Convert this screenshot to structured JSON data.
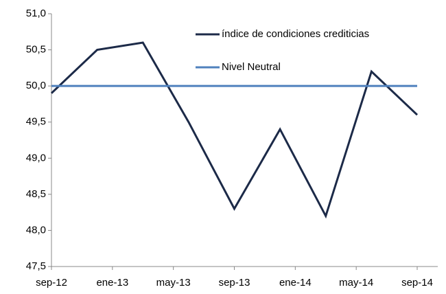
{
  "chart_data": {
    "type": "line",
    "x": [
      0,
      3,
      6,
      9,
      12,
      15,
      18,
      21,
      24
    ],
    "xlim": [
      0,
      24
    ],
    "xticks": [
      {
        "value": 0,
        "label": "sep-12"
      },
      {
        "value": 4,
        "label": "ene-13"
      },
      {
        "value": 8,
        "label": "may-13"
      },
      {
        "value": 12,
        "label": "sep-13"
      },
      {
        "value": 16,
        "label": "ene-14"
      },
      {
        "value": 20,
        "label": "may-14"
      },
      {
        "value": 24,
        "label": "sep-14"
      }
    ],
    "ylim": [
      47.5,
      51
    ],
    "yticks": [
      {
        "value": 47.5,
        "label": "47,5"
      },
      {
        "value": 48,
        "label": "48,0"
      },
      {
        "value": 48.5,
        "label": "48,5"
      },
      {
        "value": 49,
        "label": "49,0"
      },
      {
        "value": 49.5,
        "label": "49,5"
      },
      {
        "value": 50,
        "label": "50,0"
      },
      {
        "value": 50.5,
        "label": "50,5"
      },
      {
        "value": 51,
        "label": "51,0"
      }
    ],
    "series": [
      {
        "name": "índice de condiciones crediticias",
        "color": "#1c2a48",
        "values": [
          49.9,
          50.5,
          50.6,
          49.5,
          48.3,
          49.4,
          48.2,
          50.2,
          49.6
        ]
      },
      {
        "name": "Nivel Neutral",
        "color": "#4f81bd",
        "values": [
          50,
          50,
          50,
          50,
          50,
          50,
          50,
          50,
          50
        ]
      }
    ],
    "legend": "upper right"
  }
}
